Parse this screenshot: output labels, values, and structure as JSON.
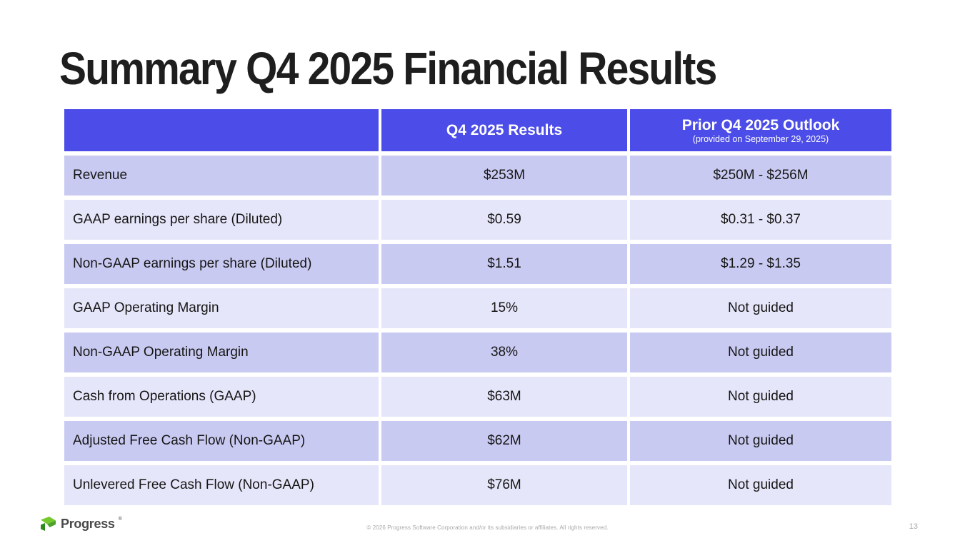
{
  "slide": {
    "title": "Summary Q4 2025 Financial Results",
    "page_number": "13",
    "copyright": "© 2026 Progress Software Corporation and/or its subsidiaries or affiliates. All rights reserved.",
    "logo": {
      "text": "Progress",
      "trademark": "®"
    }
  },
  "table": {
    "header": {
      "blank": "",
      "results_label": "Q4 2025 Results",
      "outlook_label": "Prior Q4 2025 Outlook",
      "outlook_sublabel": "(provided on September 29, 2025)"
    },
    "rows": [
      {
        "label": "Revenue",
        "result": "$253M",
        "outlook": "$250M - $256M"
      },
      {
        "label": "GAAP earnings per share (Diluted)",
        "result": "$0.59",
        "outlook": "$0.31 - $0.37"
      },
      {
        "label": "Non-GAAP earnings per share (Diluted)",
        "result": "$1.51",
        "outlook": "$1.29 - $1.35"
      },
      {
        "label": "GAAP Operating Margin",
        "result": "15%",
        "outlook": "Not guided"
      },
      {
        "label": "Non-GAAP Operating Margin",
        "result": "38%",
        "outlook": "Not guided"
      },
      {
        "label": "Cash from Operations (GAAP)",
        "result": "$63M",
        "outlook": "Not guided"
      },
      {
        "label": "Adjusted Free Cash Flow (Non-GAAP)",
        "result": "$62M",
        "outlook": "Not guided"
      },
      {
        "label": "Unlevered Free Cash Flow (Non-GAAP)",
        "result": "$76M",
        "outlook": "Not guided"
      }
    ]
  },
  "colors": {
    "header_bg": "#4c4ce8",
    "row_dark": "#c9caf2",
    "row_light": "#e5e6f9",
    "title_text": "#1e1e1e",
    "header_text": "#ffffff",
    "cell_text": "#161616",
    "footer_text": "#a9a9a9",
    "logo_green": "#74c92c",
    "logo_green_dark": "#2e8a1e"
  }
}
